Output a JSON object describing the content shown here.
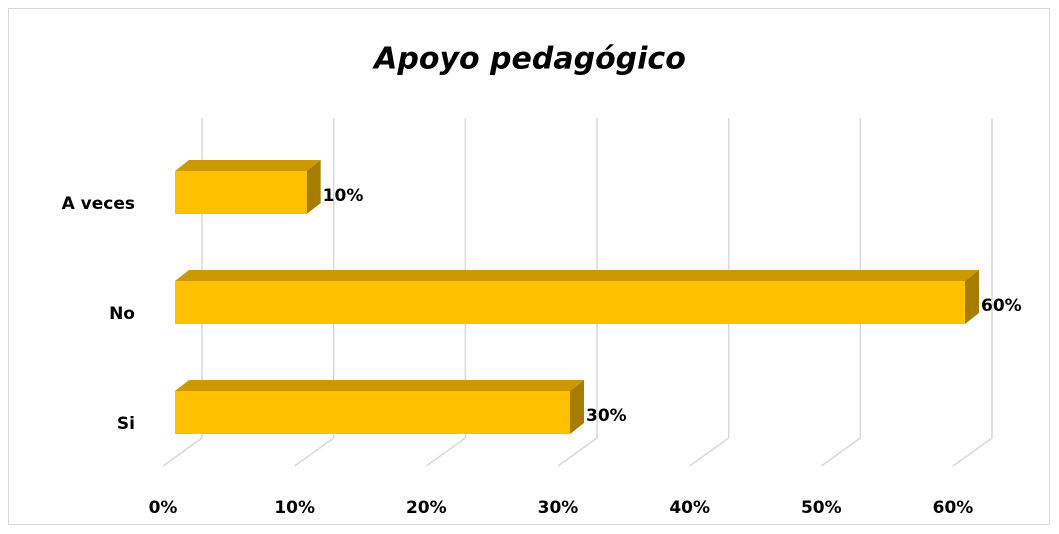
{
  "chart_data": {
    "type": "bar",
    "orientation": "horizontal",
    "title": "Apoyo pedagógico",
    "categories": [
      "A veces",
      "No",
      "Si"
    ],
    "values": [
      10,
      60,
      30
    ],
    "value_labels": [
      "10%",
      "60%",
      "30%"
    ],
    "color": "#ffc000",
    "xlim": [
      0,
      60
    ],
    "xticks": [
      {
        "value": 0,
        "label": "0%"
      },
      {
        "value": 10,
        "label": "10%"
      },
      {
        "value": 20,
        "label": "20%"
      },
      {
        "value": 30,
        "label": "30%"
      },
      {
        "value": 40,
        "label": "40%"
      },
      {
        "value": 50,
        "label": "50%"
      },
      {
        "value": 60,
        "label": "60%"
      }
    ],
    "grid": true
  }
}
